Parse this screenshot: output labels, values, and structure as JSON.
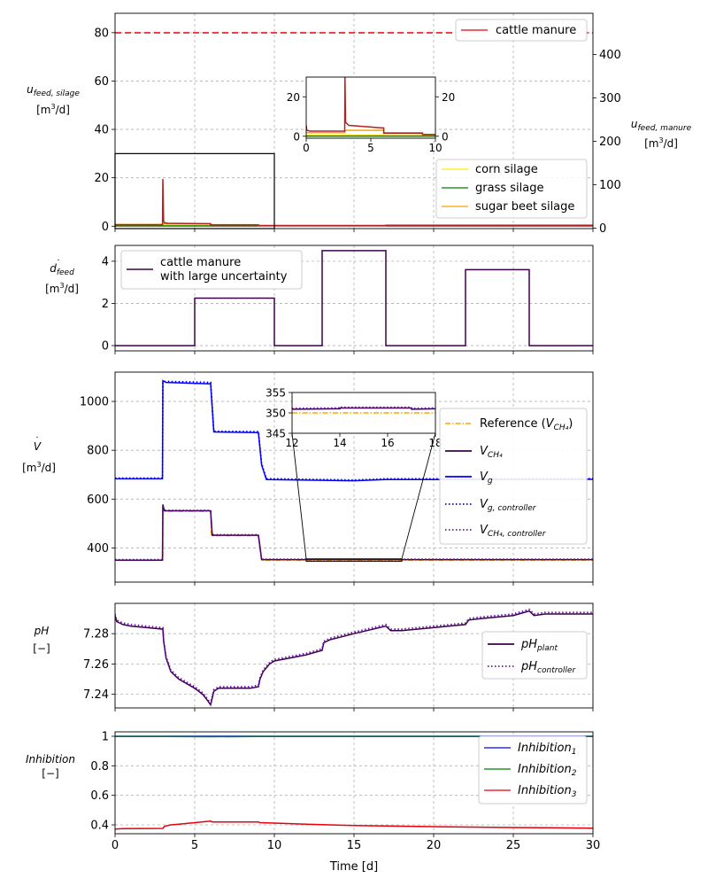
{
  "figure": {
    "xlabel": "Time [d]"
  },
  "chart_data": [
    {
      "type": "line",
      "id": "panel1",
      "ylabel_lines": [
        "u_feed,silage",
        "[m³/d]"
      ],
      "ylabel_right_lines": [
        "u_feed,manure",
        "[m³/d]"
      ],
      "xlim": [
        0,
        30
      ],
      "ylim": [
        -1,
        88
      ],
      "yticks": [
        0,
        20,
        40,
        60,
        80
      ],
      "ylim_right": [
        -1,
        495
      ],
      "yticks_right": [
        0,
        100,
        200,
        300,
        400
      ],
      "grid": true,
      "legend_right": "top-right",
      "legend": "bottom-right",
      "series": [
        {
          "name": "cattle manure",
          "axis": "right",
          "color": "#e8000b",
          "dashed": true,
          "x": [
            0,
            30
          ],
          "y": [
            450,
            450
          ]
        },
        {
          "name": "corn silage",
          "color": "#ffee00",
          "x": [
            0,
            3,
            3,
            6,
            6,
            10,
            10,
            17,
            17,
            30
          ],
          "y": [
            0.3,
            0.3,
            0.4,
            0.4,
            0.2,
            0.2,
            0.1,
            0.1,
            0.2,
            0.2
          ]
        },
        {
          "name": "grass silage",
          "color": "#008000",
          "x": [
            0,
            30
          ],
          "y": [
            0.1,
            0.1
          ]
        },
        {
          "name": "sugar beet silage",
          "color": "#ffa500",
          "x": [
            0,
            3,
            3,
            6,
            6,
            9,
            9,
            17,
            17,
            30
          ],
          "y": [
            0.7,
            0.7,
            1.0,
            1.0,
            0.6,
            0.6,
            0.2,
            0.2,
            0.5,
            0.5
          ]
        },
        {
          "name": "",
          "color": "#b22222",
          "x": [
            0,
            2.98,
            3.0,
            3.05,
            3.1,
            3.3,
            6,
            6.0,
            9,
            9.0,
            30
          ],
          "y": [
            0.6,
            0.6,
            19.5,
            2.0,
            1.4,
            1.2,
            1.0,
            0.5,
            0.5,
            0.3,
            0.3
          ]
        }
      ],
      "inset": {
        "xlim": [
          0,
          10
        ],
        "ylim": [
          -1,
          30
        ],
        "xticks": [
          0,
          5,
          10
        ],
        "yticks": [
          0,
          20
        ],
        "yticks_right": [
          0,
          20
        ],
        "series": [
          {
            "color": "#ffee00",
            "x": [
              0,
              3,
              3,
              6,
              6,
              10
            ],
            "y": [
              0.4,
              0.4,
              0.6,
              0.6,
              0.3,
              0.3
            ]
          },
          {
            "color": "#008000",
            "x": [
              0,
              10
            ],
            "y": [
              0.1,
              0.1
            ]
          },
          {
            "color": "#ffa500",
            "x": [
              0,
              3,
              3,
              6,
              6,
              9,
              9,
              10
            ],
            "y": [
              1.8,
              1.8,
              3.0,
              3.0,
              1.8,
              1.8,
              0.9,
              0.9
            ]
          },
          {
            "color": "#b22222",
            "x": [
              0,
              0.05,
              0.3,
              2.98,
              3.0,
              3.05,
              3.3,
              5.9,
              6,
              6.0,
              9,
              9.0,
              10
            ],
            "y": [
              5.5,
              3.0,
              2.6,
              2.6,
              30,
              7.0,
              5.5,
              4.2,
              4.2,
              1.5,
              1.5,
              0.9,
              0.9
            ]
          }
        ]
      }
    },
    {
      "type": "line",
      "id": "panel2",
      "ylabel_lines": [
        "d_feed",
        "[m³/d]"
      ],
      "xlim": [
        0,
        30
      ],
      "ylim": [
        -0.25,
        4.75
      ],
      "yticks": [
        0,
        2,
        4
      ],
      "grid": true,
      "legend": "top-left",
      "series": [
        {
          "name": "cattle manure\nwith large uncertainty",
          "color": "#3b0048",
          "x": [
            0,
            5,
            5,
            10,
            10,
            13,
            13,
            17,
            17,
            22,
            22,
            26,
            26,
            30
          ],
          "y": [
            0,
            0,
            2.25,
            2.25,
            0,
            0,
            4.5,
            4.5,
            0,
            0,
            3.6,
            3.6,
            0,
            0
          ]
        }
      ]
    },
    {
      "type": "line",
      "id": "panel3",
      "ylabel_lines": [
        "V",
        "[m³/d]"
      ],
      "xlim": [
        0,
        30
      ],
      "ylim": [
        260,
        1120
      ],
      "yticks": [
        400,
        600,
        800,
        1000
      ],
      "grid": true,
      "legend": "right",
      "series": [
        {
          "name": "Reference (V_CH4)",
          "color": "#ffa500",
          "dashed": "dashdot",
          "x": [
            0,
            3,
            3,
            6,
            6.05,
            6.1,
            9,
            9.2,
            30
          ],
          "y": [
            350,
            350,
            550,
            550,
            450,
            450,
            450,
            350,
            350
          ]
        },
        {
          "name": "V_CH4",
          "color": "#3b0048",
          "x": [
            0,
            2.98,
            3.0,
            3.1,
            6.0,
            6.1,
            9.0,
            9.2,
            30
          ],
          "y": [
            350,
            350,
            578,
            552,
            552,
            452,
            452,
            352,
            352
          ]
        },
        {
          "name": "V_g",
          "color": "#0000ff",
          "x": [
            0,
            2.98,
            3.0,
            3.2,
            6.0,
            6.2,
            9.0,
            9.2,
            9.5,
            15,
            17,
            22,
            30
          ],
          "y": [
            683,
            683,
            1085,
            1078,
            1072,
            875,
            872,
            740,
            680,
            675,
            680,
            680,
            681
          ]
        },
        {
          "name": "V_g,controller",
          "color": "#0000ff",
          "dashed": "dotted",
          "x": [
            0,
            2.98,
            3.0,
            3.2,
            6.0,
            6.2,
            9.0,
            9.2,
            9.5,
            15,
            17,
            22,
            30
          ],
          "y": [
            686,
            686,
            1080,
            1082,
            1078,
            878,
            876,
            745,
            684,
            678,
            683,
            683,
            684
          ]
        },
        {
          "name": "V_CH4,controller",
          "color": "#6a0dad",
          "dashed": "dotted",
          "x": [
            0,
            2.98,
            3.0,
            3.1,
            6.0,
            6.1,
            9.0,
            9.2,
            30
          ],
          "y": [
            352,
            352,
            572,
            554,
            554,
            454,
            454,
            354,
            354
          ]
        }
      ],
      "inset": {
        "xlim": [
          12,
          18
        ],
        "ylim": [
          345,
          355
        ],
        "xticks": [
          12,
          14,
          16,
          18
        ],
        "yticks": [
          345,
          350,
          355
        ],
        "series": [
          {
            "color": "#ffa500",
            "dashed": "dashdot",
            "x": [
              12,
              18
            ],
            "y": [
              350,
              350
            ]
          },
          {
            "color": "#3b0048",
            "x": [
              12,
              14,
              14,
              17,
              17,
              18
            ],
            "y": [
              350.9,
              351.0,
              351.2,
              351.2,
              350.9,
              351.0
            ]
          },
          {
            "color": "#6a0dad",
            "dashed": "dotted",
            "x": [
              12,
              14,
              14,
              17,
              17,
              18
            ],
            "y": [
              351.1,
              351.2,
              351.4,
              351.4,
              351.1,
              351.2
            ]
          }
        ]
      }
    },
    {
      "type": "line",
      "id": "panel4",
      "ylabel_lines": [
        "pH",
        "[−]"
      ],
      "xlim": [
        0,
        30
      ],
      "ylim": [
        7.231,
        7.3
      ],
      "yticks": [
        7.24,
        7.26,
        7.28
      ],
      "grid": true,
      "legend": "right",
      "series": [
        {
          "name": "pH_plant",
          "color": "#3b0048",
          "x": [
            0,
            0.1,
            0.5,
            1,
            2,
            3,
            3.05,
            3.2,
            3.5,
            4,
            5,
            5.5,
            5.8,
            6,
            6.2,
            6.5,
            7,
            8,
            8.5,
            9,
            9.1,
            9.3,
            9.7,
            10,
            11,
            12,
            13,
            13.1,
            13.5,
            15,
            17,
            17.3,
            18,
            20,
            22,
            22.2,
            23,
            25,
            26,
            26.3,
            27,
            28,
            30
          ],
          "y": [
            7.292,
            7.288,
            7.286,
            7.285,
            7.284,
            7.283,
            7.275,
            7.264,
            7.255,
            7.25,
            7.244,
            7.24,
            7.236,
            7.233,
            7.242,
            7.244,
            7.244,
            7.244,
            7.244,
            7.245,
            7.25,
            7.255,
            7.26,
            7.262,
            7.264,
            7.266,
            7.269,
            7.274,
            7.276,
            7.28,
            7.285,
            7.282,
            7.282,
            7.284,
            7.286,
            7.289,
            7.29,
            7.292,
            7.295,
            7.292,
            7.293,
            7.293,
            7.293
          ]
        },
        {
          "name": "pH_controller",
          "color": "#6a0dad",
          "dashed": "dotted",
          "x": [
            0,
            0.1,
            0.5,
            1,
            2,
            3,
            3.05,
            3.2,
            3.5,
            4,
            5,
            5.5,
            5.8,
            6,
            6.2,
            6.5,
            7,
            8,
            8.5,
            9,
            9.1,
            9.3,
            9.7,
            10,
            11,
            12,
            13,
            13.1,
            13.5,
            15,
            17,
            17.3,
            18,
            20,
            22,
            22.2,
            23,
            25,
            26,
            26.3,
            27,
            28,
            30
          ],
          "y": [
            7.293,
            7.289,
            7.287,
            7.286,
            7.285,
            7.284,
            7.276,
            7.265,
            7.256,
            7.251,
            7.245,
            7.241,
            7.237,
            7.234,
            7.243,
            7.245,
            7.245,
            7.245,
            7.245,
            7.246,
            7.251,
            7.256,
            7.261,
            7.263,
            7.265,
            7.267,
            7.27,
            7.275,
            7.277,
            7.281,
            7.286,
            7.283,
            7.283,
            7.285,
            7.287,
            7.29,
            7.291,
            7.293,
            7.296,
            7.293,
            7.294,
            7.294,
            7.294
          ]
        }
      ]
    },
    {
      "type": "line",
      "id": "panel5",
      "ylabel_lines": [
        "Inhibition",
        "[−]"
      ],
      "xlim": [
        0,
        30
      ],
      "ylim": [
        0.34,
        1.03
      ],
      "yticks": [
        0.4,
        0.6,
        0.8,
        1.0
      ],
      "grid": true,
      "legend": "right",
      "series": [
        {
          "name": "Inhibition_1",
          "color": "#0000ff",
          "x": [
            0,
            30
          ],
          "y": [
            1.0,
            1.0
          ]
        },
        {
          "name": "Inhibition_2",
          "color": "#008000",
          "x": [
            0,
            3,
            6,
            9,
            30
          ],
          "y": [
            0.999,
            0.998,
            0.997,
            0.998,
            0.999
          ]
        },
        {
          "name": "Inhibition_3",
          "color": "#e8000b",
          "x": [
            0,
            0.5,
            3,
            3.1,
            3.5,
            4,
            5,
            6,
            6.1,
            9,
            9.1,
            10,
            12,
            15,
            20,
            25,
            30
          ],
          "y": [
            0.372,
            0.375,
            0.376,
            0.39,
            0.4,
            0.405,
            0.415,
            0.425,
            0.42,
            0.42,
            0.415,
            0.412,
            0.405,
            0.395,
            0.388,
            0.382,
            0.378
          ]
        }
      ]
    }
  ]
}
